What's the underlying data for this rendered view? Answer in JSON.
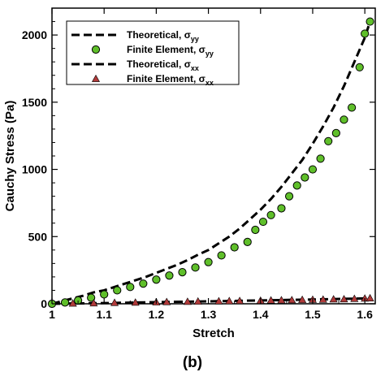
{
  "chart_data": {
    "type": "scatter",
    "xlabel": "Stretch",
    "ylabel": "Cauchy Stress (Pa)",
    "xlim": [
      1.0,
      1.62
    ],
    "ylim": [
      0,
      2200
    ],
    "x_ticks": [
      "1",
      "1.1",
      "1.2",
      "1.3",
      "1.4",
      "1.5",
      "1.6"
    ],
    "y_ticks": [
      "0",
      "500",
      "1000",
      "1500",
      "2000"
    ],
    "grid": false,
    "legend_position": "top-left",
    "series": [
      {
        "name": "Theoretical, σ",
        "subscript": "yy",
        "kind": "line",
        "style": "dashed",
        "color": "#000000",
        "x": [
          1.0,
          1.02,
          1.04,
          1.06,
          1.08,
          1.1,
          1.12,
          1.14,
          1.16,
          1.18,
          1.2,
          1.22,
          1.24,
          1.26,
          1.28,
          1.3,
          1.32,
          1.34,
          1.36,
          1.38,
          1.4,
          1.42,
          1.44,
          1.46,
          1.48,
          1.5,
          1.52,
          1.54,
          1.56,
          1.58,
          1.6,
          1.61
        ],
        "y": [
          0,
          20,
          40,
          60,
          85,
          100,
          125,
          150,
          175,
          200,
          230,
          260,
          290,
          325,
          365,
          400,
          450,
          500,
          560,
          630,
          700,
          780,
          870,
          970,
          1070,
          1190,
          1320,
          1460,
          1620,
          1800,
          1980,
          2100
        ]
      },
      {
        "name": "Finite Element, σ",
        "subscript": "yy",
        "kind": "scatter",
        "marker": "circle",
        "color": "#5fbf2a",
        "x": [
          1.0,
          1.025,
          1.05,
          1.075,
          1.1,
          1.125,
          1.15,
          1.175,
          1.2,
          1.225,
          1.25,
          1.275,
          1.3,
          1.325,
          1.35,
          1.375,
          1.39,
          1.405,
          1.42,
          1.44,
          1.455,
          1.47,
          1.485,
          1.5,
          1.515,
          1.53,
          1.545,
          1.56,
          1.575,
          1.59,
          1.6,
          1.61
        ],
        "y": [
          0,
          10,
          25,
          45,
          70,
          100,
          125,
          150,
          180,
          210,
          235,
          270,
          310,
          360,
          420,
          460,
          550,
          610,
          660,
          710,
          800,
          880,
          940,
          1000,
          1080,
          1210,
          1270,
          1370,
          1460,
          1760,
          2010,
          2100
        ]
      },
      {
        "name": "Theoretical, σ",
        "subscript": "xx",
        "kind": "line",
        "style": "dashed",
        "color": "#000000",
        "x": [
          1.0,
          1.1,
          1.2,
          1.3,
          1.4,
          1.5,
          1.6,
          1.61
        ],
        "y": [
          0,
          5,
          12,
          18,
          25,
          32,
          40,
          42
        ]
      },
      {
        "name": "Finite Element, σ",
        "subscript": "xx",
        "kind": "scatter",
        "marker": "triangle",
        "color": "#b03a3a",
        "x": [
          1.04,
          1.08,
          1.12,
          1.16,
          1.2,
          1.22,
          1.26,
          1.28,
          1.32,
          1.34,
          1.36,
          1.4,
          1.42,
          1.44,
          1.46,
          1.48,
          1.5,
          1.52,
          1.54,
          1.56,
          1.58,
          1.6,
          1.61
        ],
        "y": [
          3,
          5,
          8,
          10,
          12,
          14,
          16,
          18,
          20,
          21,
          22,
          24,
          26,
          27,
          28,
          30,
          31,
          32,
          34,
          35,
          38,
          40,
          42
        ]
      }
    ]
  },
  "caption": "(b)"
}
